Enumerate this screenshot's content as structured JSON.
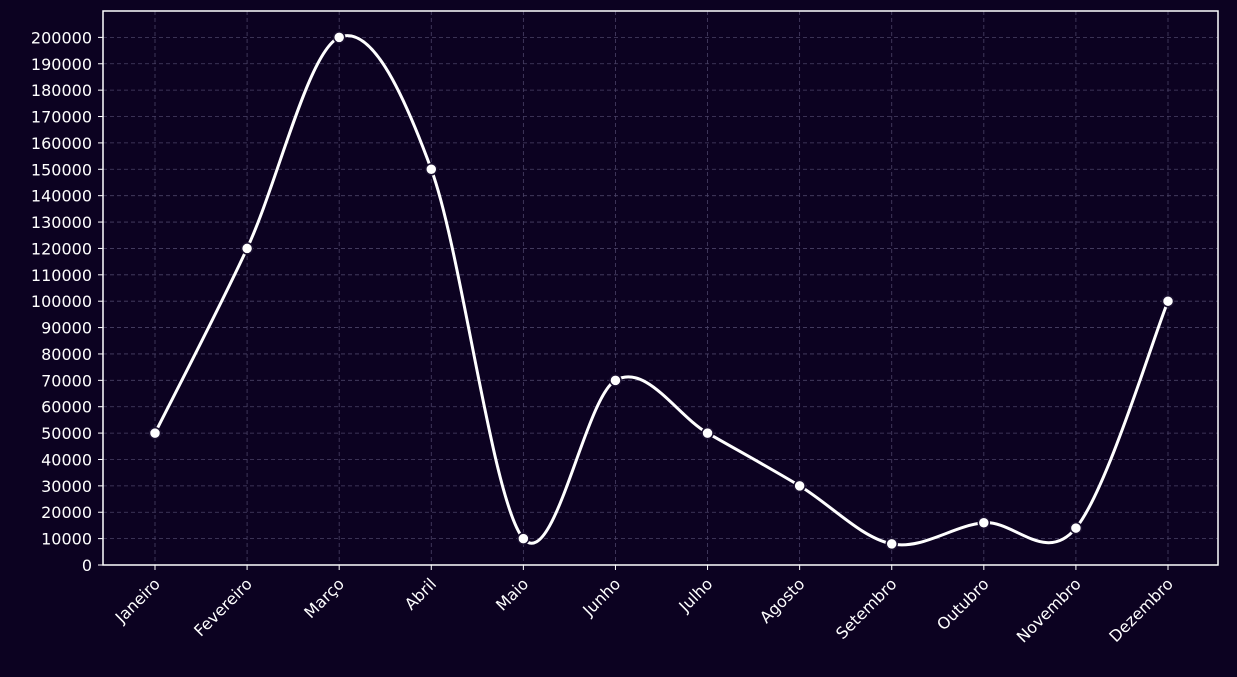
{
  "chart_data": {
    "type": "line",
    "title": "",
    "xlabel": "",
    "ylabel": "",
    "categories": [
      "Janeiro",
      "Fevereiro",
      "Março",
      "Abril",
      "Maio",
      "Junho",
      "Julho",
      "Agosto",
      "Setembro",
      "Outubro",
      "Novembro",
      "Dezembro"
    ],
    "series": [
      {
        "values": [
          50000,
          120000,
          200000,
          150000,
          10000,
          70000,
          50000,
          30000,
          8000,
          16000,
          14000,
          100000
        ]
      }
    ],
    "yticks": [
      "0",
      "10000",
      "20000",
      "30000",
      "40000",
      "50000",
      "60000",
      "70000",
      "80000",
      "90000",
      "100000",
      "110000",
      "120000",
      "130000",
      "140000",
      "150000",
      "160000",
      "170000",
      "180000",
      "190000",
      "200000"
    ],
    "ylim": [
      0,
      210000
    ],
    "grid": true,
    "smooth": true,
    "colors": {
      "background": "#0c0221",
      "line": "#ffffff",
      "marker_fill": "#ffffff",
      "marker_edge": "#1a1030",
      "grid": "#4a4266",
      "frame": "#ffffff",
      "text": "#ffffff"
    }
  }
}
